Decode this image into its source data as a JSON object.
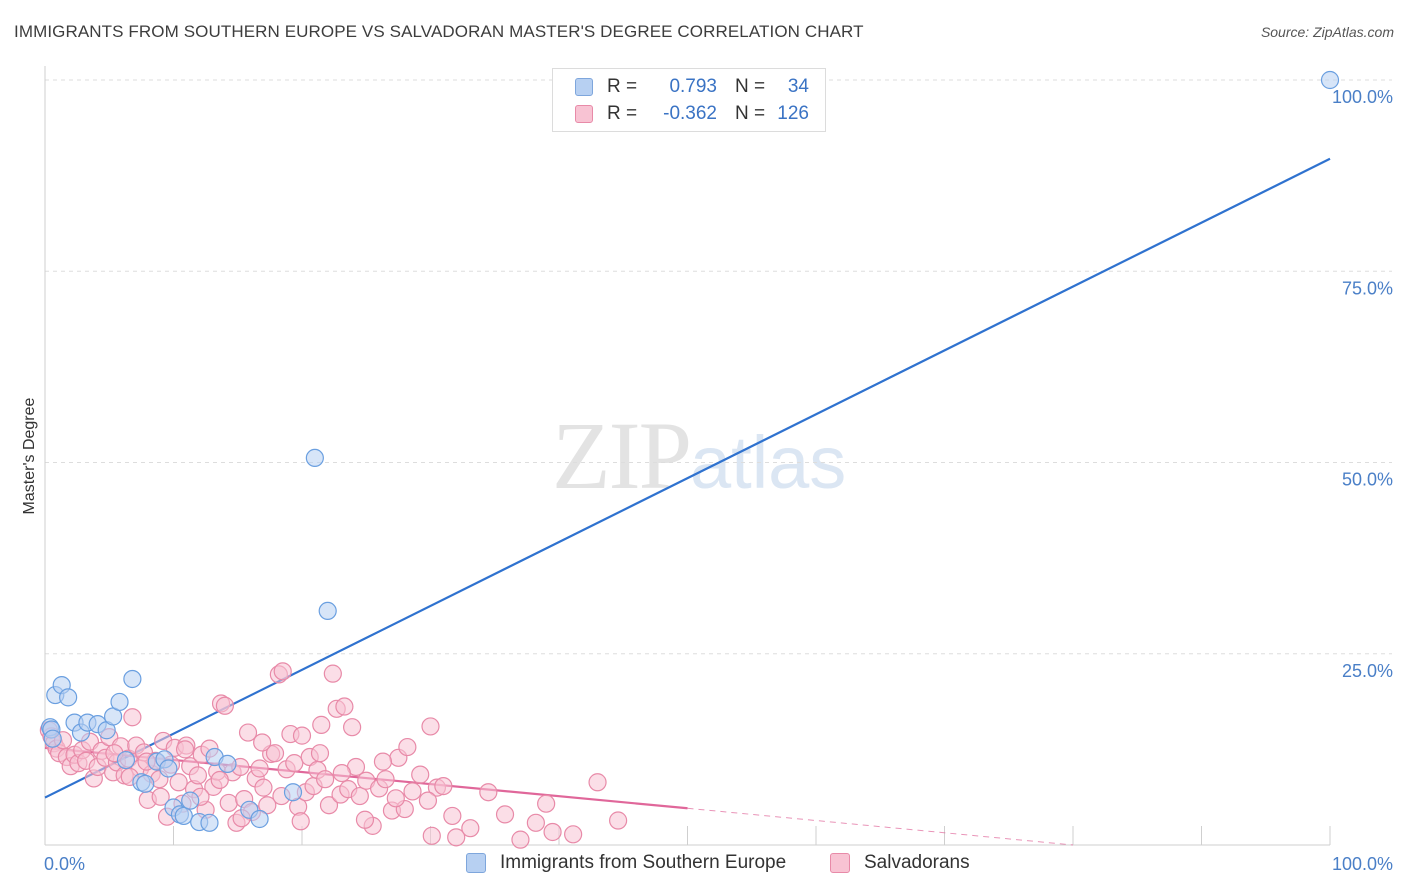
{
  "header": {
    "title": "IMMIGRANTS FROM SOUTHERN EUROPE VS SALVADORAN MASTER'S DEGREE CORRELATION CHART",
    "source": "Source: ZipAtlas.com"
  },
  "watermark": {
    "zip": "ZIP",
    "atlas": "atlas"
  },
  "legend": {
    "rows": [
      {
        "r_label": "R =",
        "r_value": "0.793",
        "n_label": "N =",
        "n_value": "34",
        "color": "#b7d0f2",
        "border": "#7ea6dc"
      },
      {
        "r_label": "R =",
        "r_value": "-0.362",
        "n_label": "N =",
        "n_value": "126",
        "color": "#f8c3d3",
        "border": "#e88aa8"
      }
    ]
  },
  "bottom_legend": {
    "items": [
      {
        "label": "Immigrants from Southern Europe",
        "color": "#b7d0f2",
        "border": "#7ea6dc"
      },
      {
        "label": "Salvadorans",
        "color": "#f8c3d3",
        "border": "#e88aa8"
      }
    ]
  },
  "chart_data": {
    "type": "scatter",
    "title": "IMMIGRANTS FROM SOUTHERN EUROPE VS SALVADORAN MASTER'S DEGREE CORRELATION CHART",
    "ylabel": "Master's Degree",
    "xlabel": "",
    "xlim": [
      0,
      100
    ],
    "ylim": [
      0,
      100
    ],
    "x_tick_labels": [
      "0.0%",
      "100.0%"
    ],
    "y_ticks": [
      25,
      50,
      75,
      100
    ],
    "y_tick_labels": [
      "25.0%",
      "50.0%",
      "75.0%",
      "100.0%"
    ],
    "grid": true,
    "legend_position": "top-center",
    "series": [
      {
        "name": "Immigrants from Southern Europe",
        "color": "#6a9fe0",
        "fill": "#b7d0f2",
        "line_color": "#2f72cf",
        "trend": {
          "x": [
            0,
            100
          ],
          "y": [
            6.2,
            89.7
          ],
          "dashed_from": null
        },
        "points": [
          [
            0.4,
            15.4
          ],
          [
            0.5,
            15.1
          ],
          [
            0.6,
            13.9
          ],
          [
            0.8,
            19.6
          ],
          [
            1.3,
            20.9
          ],
          [
            1.8,
            19.3
          ],
          [
            2.3,
            16.0
          ],
          [
            2.8,
            14.7
          ],
          [
            3.3,
            16.0
          ],
          [
            4.1,
            15.8
          ],
          [
            4.8,
            15.0
          ],
          [
            5.3,
            16.8
          ],
          [
            5.8,
            18.7
          ],
          [
            6.3,
            11.1
          ],
          [
            6.8,
            21.7
          ],
          [
            7.5,
            8.2
          ],
          [
            7.8,
            8.0
          ],
          [
            8.7,
            10.9
          ],
          [
            9.3,
            11.2
          ],
          [
            9.6,
            10.0
          ],
          [
            10.0,
            4.9
          ],
          [
            10.5,
            4.0
          ],
          [
            10.8,
            3.8
          ],
          [
            11.3,
            5.8
          ],
          [
            12.0,
            3.0
          ],
          [
            12.8,
            2.9
          ],
          [
            13.2,
            11.5
          ],
          [
            14.2,
            10.6
          ],
          [
            15.9,
            4.6
          ],
          [
            16.7,
            3.4
          ],
          [
            19.3,
            6.9
          ],
          [
            21.0,
            50.6
          ],
          [
            22.0,
            30.6
          ],
          [
            100.0,
            100.0
          ]
        ]
      },
      {
        "name": "Salvadorans",
        "color": "#e88aa8",
        "fill": "#f8c3d3",
        "line_color": "#e0679a",
        "trend": {
          "x": [
            0,
            50,
            80
          ],
          "y": [
            12.7,
            4.8,
            0.0
          ],
          "dashed_from": 50
        },
        "points": [
          [
            0.3,
            15.0
          ],
          [
            0.5,
            14.2
          ],
          [
            0.7,
            13.3
          ],
          [
            0.9,
            12.6
          ],
          [
            1.1,
            12.0
          ],
          [
            1.4,
            13.7
          ],
          [
            1.7,
            11.5
          ],
          [
            2.0,
            10.3
          ],
          [
            2.3,
            11.8
          ],
          [
            2.6,
            10.7
          ],
          [
            2.9,
            12.4
          ],
          [
            3.2,
            11.0
          ],
          [
            3.5,
            13.5
          ],
          [
            3.8,
            8.7
          ],
          [
            4.1,
            10.2
          ],
          [
            4.4,
            12.3
          ],
          [
            4.7,
            11.4
          ],
          [
            5.0,
            14.1
          ],
          [
            5.3,
            9.5
          ],
          [
            5.6,
            10.8
          ],
          [
            5.9,
            12.9
          ],
          [
            6.2,
            9.1
          ],
          [
            6.5,
            11.3
          ],
          [
            6.8,
            16.7
          ],
          [
            7.1,
            13.0
          ],
          [
            7.4,
            10.0
          ],
          [
            7.7,
            12.1
          ],
          [
            8.0,
            5.9
          ],
          [
            8.3,
            9.3
          ],
          [
            8.6,
            11.0
          ],
          [
            8.9,
            8.6
          ],
          [
            9.2,
            13.6
          ],
          [
            9.5,
            3.7
          ],
          [
            9.8,
            10.5
          ],
          [
            10.1,
            12.7
          ],
          [
            10.4,
            8.2
          ],
          [
            10.7,
            5.4
          ],
          [
            11.0,
            13.0
          ],
          [
            11.3,
            10.3
          ],
          [
            11.6,
            7.3
          ],
          [
            11.9,
            9.1
          ],
          [
            12.2,
            11.8
          ],
          [
            12.5,
            4.6
          ],
          [
            12.8,
            12.6
          ],
          [
            13.1,
            7.6
          ],
          [
            13.4,
            9.6
          ],
          [
            13.7,
            18.5
          ],
          [
            14.0,
            18.2
          ],
          [
            14.3,
            5.5
          ],
          [
            14.6,
            9.5
          ],
          [
            14.9,
            2.9
          ],
          [
            15.2,
            10.2
          ],
          [
            15.5,
            6.0
          ],
          [
            15.8,
            14.7
          ],
          [
            16.1,
            4.3
          ],
          [
            16.4,
            8.7
          ],
          [
            16.7,
            10.0
          ],
          [
            17.0,
            7.5
          ],
          [
            17.3,
            5.2
          ],
          [
            17.6,
            11.9
          ],
          [
            17.9,
            12.0
          ],
          [
            18.2,
            22.3
          ],
          [
            18.5,
            22.7
          ],
          [
            18.8,
            9.9
          ],
          [
            19.1,
            14.5
          ],
          [
            19.4,
            10.7
          ],
          [
            19.7,
            5.0
          ],
          [
            20.0,
            14.3
          ],
          [
            20.3,
            6.9
          ],
          [
            20.6,
            11.5
          ],
          [
            20.9,
            7.7
          ],
          [
            21.2,
            9.8
          ],
          [
            21.5,
            15.7
          ],
          [
            21.8,
            8.6
          ],
          [
            22.1,
            5.2
          ],
          [
            22.4,
            22.4
          ],
          [
            22.7,
            17.8
          ],
          [
            23.0,
            6.6
          ],
          [
            23.3,
            18.1
          ],
          [
            23.6,
            7.3
          ],
          [
            23.9,
            15.4
          ],
          [
            24.2,
            10.2
          ],
          [
            24.5,
            6.4
          ],
          [
            25.0,
            8.4
          ],
          [
            25.5,
            2.5
          ],
          [
            26.0,
            7.4
          ],
          [
            26.5,
            8.6
          ],
          [
            27.0,
            4.5
          ],
          [
            27.5,
            11.4
          ],
          [
            28.0,
            4.7
          ],
          [
            28.6,
            7.0
          ],
          [
            29.2,
            9.2
          ],
          [
            30.0,
            15.5
          ],
          [
            30.5,
            7.5
          ],
          [
            31.0,
            7.7
          ],
          [
            30.1,
            1.2
          ],
          [
            32.0,
            1.0
          ],
          [
            34.5,
            6.9
          ],
          [
            37.0,
            0.7
          ],
          [
            39.0,
            5.4
          ],
          [
            39.5,
            1.7
          ],
          [
            43.0,
            8.2
          ],
          [
            5.4,
            12.0
          ],
          [
            6.6,
            8.9
          ],
          [
            7.9,
            10.9
          ],
          [
            9.0,
            6.3
          ],
          [
            10.9,
            12.5
          ],
          [
            12.1,
            6.3
          ],
          [
            13.6,
            8.5
          ],
          [
            15.3,
            3.5
          ],
          [
            16.9,
            13.4
          ],
          [
            18.4,
            6.4
          ],
          [
            19.9,
            3.1
          ],
          [
            21.4,
            12.0
          ],
          [
            23.1,
            9.4
          ],
          [
            24.9,
            3.3
          ],
          [
            26.3,
            10.9
          ],
          [
            27.3,
            6.1
          ],
          [
            28.2,
            12.8
          ],
          [
            29.8,
            5.8
          ],
          [
            31.7,
            3.8
          ],
          [
            33.1,
            2.2
          ],
          [
            35.8,
            4.0
          ],
          [
            38.2,
            2.9
          ],
          [
            41.1,
            1.4
          ],
          [
            44.6,
            3.2
          ]
        ]
      }
    ]
  }
}
